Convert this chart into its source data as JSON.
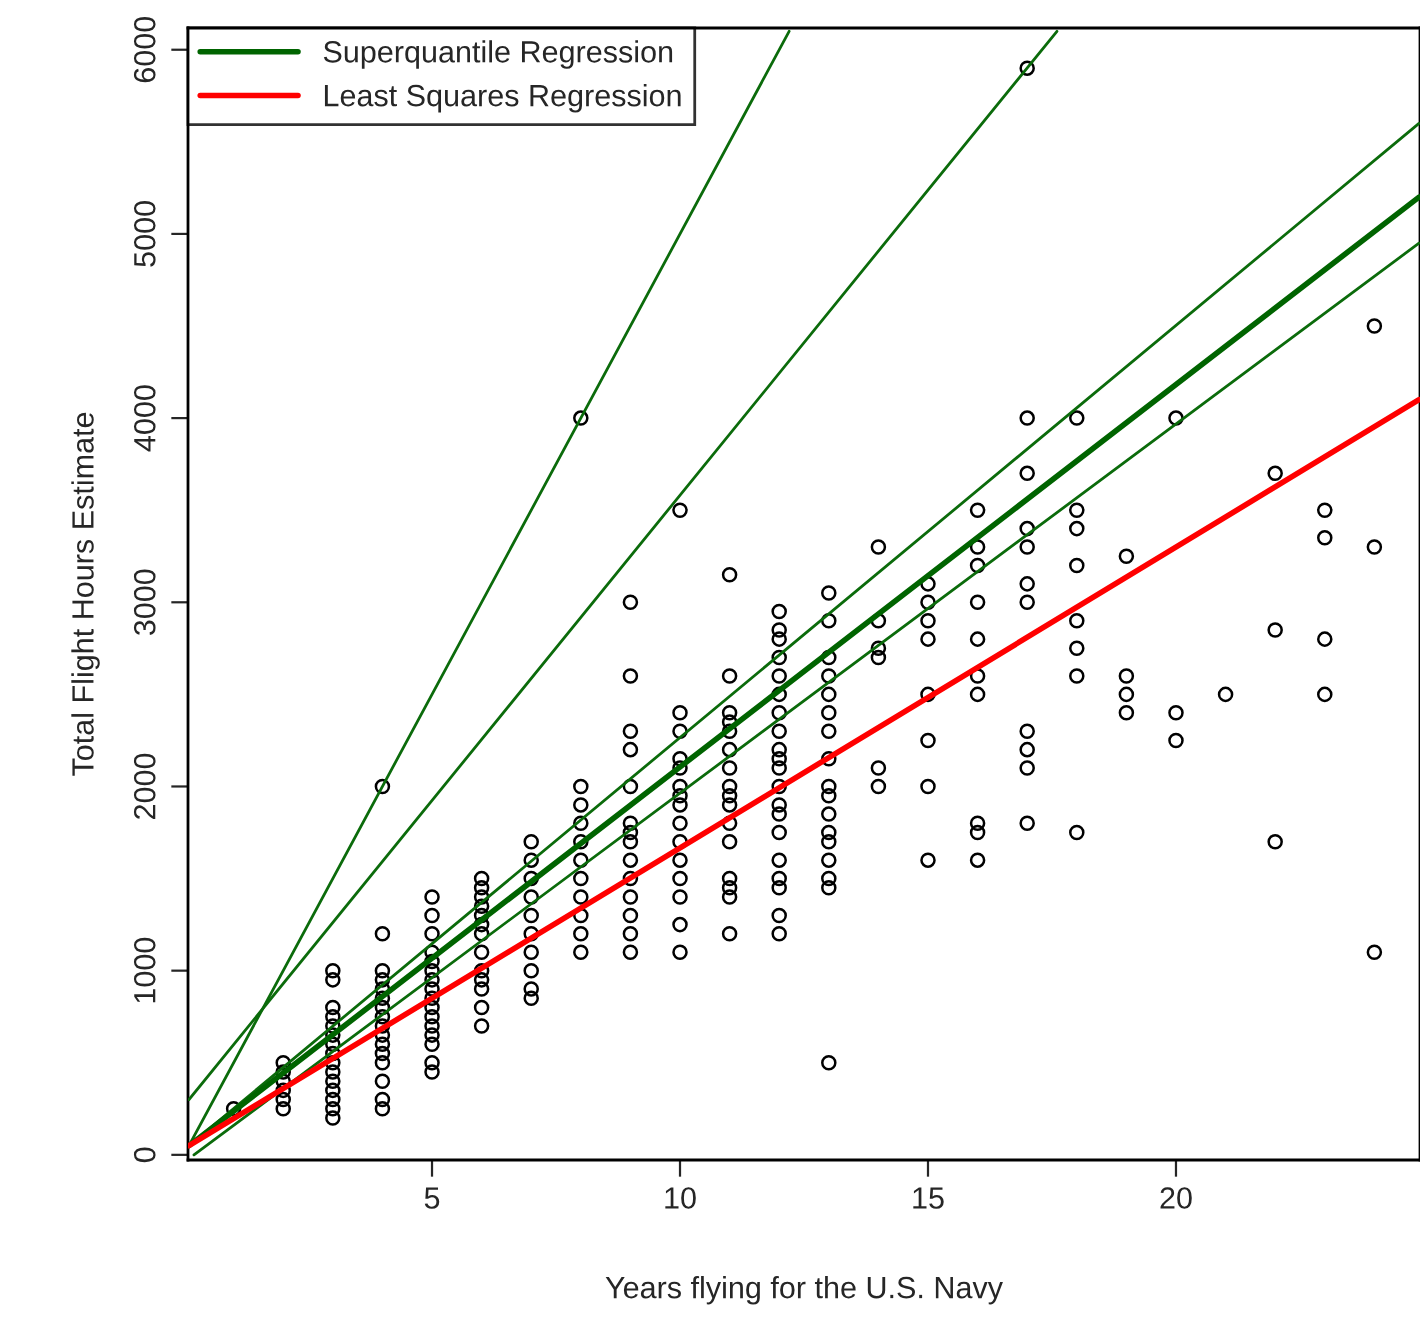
{
  "chart_data": {
    "type": "scatter",
    "xlabel": "Years flying for the U.S. Navy",
    "ylabel": "Total Flight Hours Estimate",
    "xlim": [
      0.08,
      24.92
    ],
    "ylim": [
      -28,
      6118
    ],
    "xticks": [
      5,
      10,
      15,
      20
    ],
    "yticks": [
      0,
      1000,
      2000,
      3000,
      4000,
      5000,
      6000
    ],
    "grid": false,
    "legend": "top left",
    "marker": "circle",
    "series": [
      {
        "color": "#000000",
        "x": [
          1,
          2,
          2,
          2,
          2,
          2,
          2,
          3,
          3,
          3,
          3,
          3,
          3,
          3,
          3,
          3,
          3,
          3,
          3,
          3,
          3,
          3,
          4,
          4,
          4,
          4,
          4,
          4,
          4,
          4,
          4,
          4,
          4,
          4,
          4,
          4,
          4,
          4,
          5,
          5,
          5,
          5,
          5,
          5,
          5,
          5,
          5,
          5,
          5,
          5,
          5,
          5,
          5,
          5,
          6,
          6,
          6,
          6,
          6,
          6,
          6,
          6,
          6,
          6,
          6,
          6,
          6,
          7,
          7,
          7,
          7,
          7,
          7,
          7,
          7,
          7,
          7,
          8,
          8,
          8,
          8,
          8,
          8,
          8,
          8,
          8,
          8,
          8,
          9,
          9,
          9,
          9,
          9,
          9,
          9,
          9,
          9,
          9,
          9,
          9,
          9,
          9,
          10,
          10,
          10,
          10,
          10,
          10,
          10,
          10,
          10,
          10,
          10,
          10,
          10,
          10,
          10,
          11,
          11,
          11,
          11,
          11,
          11,
          11,
          11,
          11,
          11,
          11,
          11,
          11,
          11,
          11,
          11,
          12,
          12,
          12,
          12,
          12,
          12,
          12,
          12,
          12,
          12,
          12,
          12,
          12,
          12,
          12,
          12,
          12,
          12,
          12,
          12,
          13,
          13,
          13,
          13,
          13,
          13,
          13,
          13,
          13,
          13,
          13,
          13,
          13,
          13,
          13,
          13,
          13,
          14,
          14,
          14,
          14,
          14,
          14,
          15,
          15,
          15,
          15,
          15,
          15,
          15,
          15,
          16,
          16,
          16,
          16,
          16,
          16,
          16,
          16,
          16,
          16,
          17,
          17,
          17,
          17,
          17,
          17,
          17,
          17,
          17,
          17,
          17,
          18,
          18,
          18,
          18,
          18,
          18,
          18,
          18,
          19,
          19,
          19,
          19,
          20,
          20,
          20,
          21,
          22,
          22,
          22,
          23,
          23,
          23,
          23,
          24,
          24,
          24
        ],
        "values": [
          250,
          250,
          300,
          350,
          400,
          450,
          500,
          200,
          250,
          300,
          350,
          400,
          450,
          500,
          550,
          600,
          650,
          700,
          750,
          800,
          950,
          1000,
          250,
          300,
          400,
          500,
          550,
          600,
          650,
          700,
          750,
          800,
          850,
          900,
          950,
          1000,
          1200,
          2000,
          450,
          500,
          600,
          650,
          700,
          750,
          800,
          850,
          900,
          950,
          1000,
          1050,
          1100,
          1200,
          1300,
          1400,
          700,
          800,
          900,
          950,
          1000,
          1100,
          1200,
          1250,
          1300,
          1350,
          1400,
          1450,
          1500,
          850,
          900,
          1000,
          1100,
          1200,
          1300,
          1400,
          1500,
          1600,
          1700,
          1100,
          1200,
          1300,
          1400,
          1500,
          1600,
          1700,
          1800,
          1900,
          2000,
          4000,
          3000,
          2600,
          2300,
          2200,
          2000,
          1800,
          1750,
          1700,
          1600,
          1500,
          1400,
          1300,
          1200,
          1100,
          3500,
          2400,
          2300,
          2150,
          2100,
          2000,
          1950,
          1900,
          1800,
          1700,
          1600,
          1500,
          1400,
          1250,
          1100,
          3150,
          2600,
          2400,
          2350,
          2300,
          2200,
          2100,
          2000,
          1950,
          1900,
          1800,
          1700,
          1500,
          1450,
          1400,
          1200,
          2950,
          2850,
          2800,
          2700,
          2600,
          2500,
          2400,
          2300,
          2200,
          2150,
          2100,
          2000,
          1900,
          1850,
          1750,
          1600,
          1500,
          1450,
          1300,
          1200,
          3050,
          2900,
          2700,
          2600,
          2500,
          2400,
          2300,
          2150,
          2000,
          1950,
          1850,
          1750,
          1700,
          1600,
          1500,
          1450,
          500,
          3300,
          2900,
          2750,
          2700,
          2100,
          2000,
          3100,
          3000,
          2900,
          2800,
          2500,
          2250,
          2000,
          1600,
          3500,
          3300,
          3200,
          3000,
          2800,
          2600,
          2500,
          1800,
          1750,
          1600,
          5900,
          4000,
          3700,
          3400,
          3300,
          3100,
          3000,
          2300,
          2200,
          2100,
          1800,
          4000,
          3500,
          3400,
          3200,
          2900,
          2750,
          2600,
          1750,
          3250,
          2600,
          2500,
          2400,
          4000,
          2400,
          2250,
          2500,
          3700,
          2850,
          1700,
          3500,
          3350,
          2800,
          2500,
          4500,
          3300,
          1100
        ]
      },
      {
        "type": "line",
        "color": "#0b6b0b",
        "x": [
          0.1,
          12.2
        ],
        "values": [
          50,
          6100
        ],
        "marker": "none"
      },
      {
        "type": "line",
        "color": "#0b6b0b",
        "x": [
          0.1,
          17.6
        ],
        "values": [
          300,
          6100
        ],
        "marker": "none"
      },
      {
        "type": "line",
        "color": "#0b6b0b",
        "x": [
          0.1,
          24.9
        ],
        "values": [
          50,
          5600
        ],
        "marker": "none"
      },
      {
        "type": "line",
        "color": "#0b6b0b",
        "x": [
          0.2,
          24.9
        ],
        "values": [
          0,
          4950
        ],
        "marker": "none"
      },
      {
        "type": "line",
        "name": "Superquantile Regression",
        "color": "#006400",
        "x": [
          0.1,
          24.9
        ],
        "values": [
          50,
          5200
        ],
        "marker": "none"
      },
      {
        "type": "line",
        "name": "Least Squares Regression",
        "color": "#ff0000",
        "x": [
          0.1,
          24.9
        ],
        "values": [
          50,
          4100
        ],
        "marker": "none"
      }
    ]
  }
}
